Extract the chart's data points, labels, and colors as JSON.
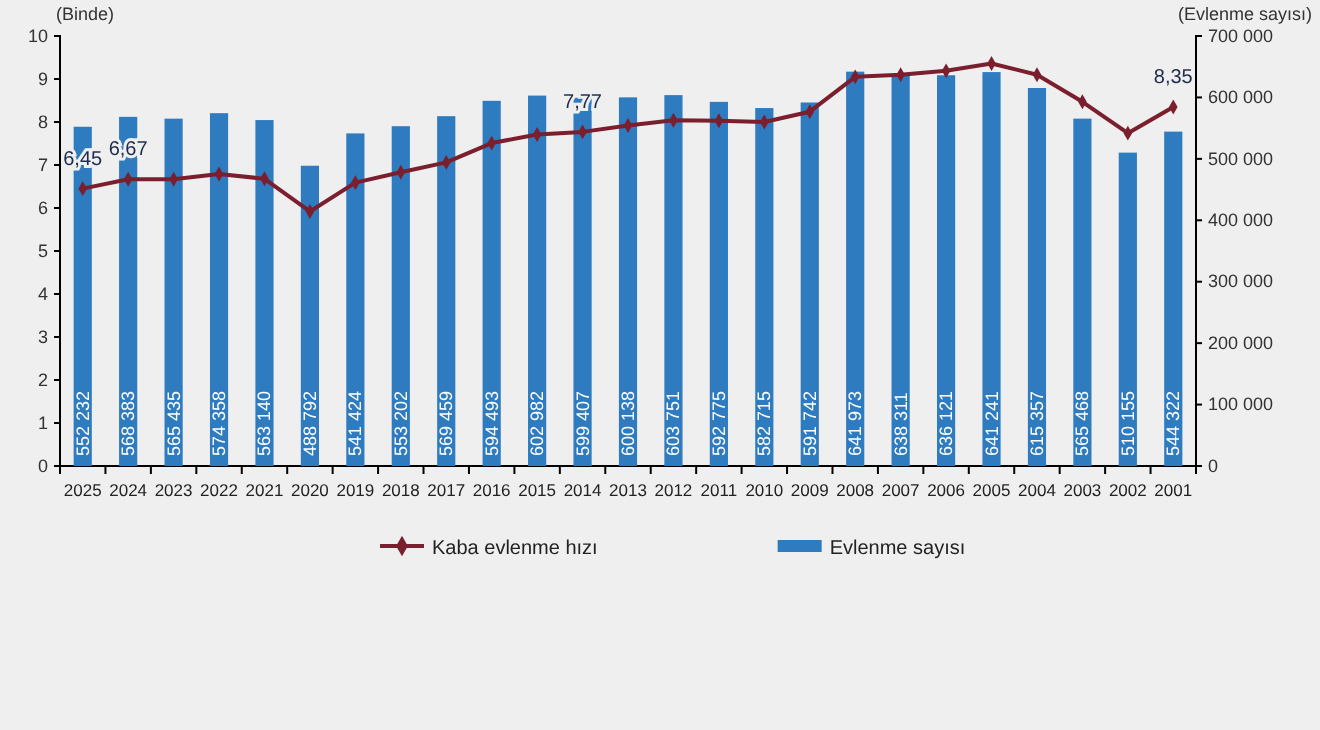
{
  "chart_data": {
    "type": "bar",
    "ylabel": "(Binde)",
    "y2label": "(Evlenme sayısı)",
    "categories": [
      "2025",
      "2024",
      "2023",
      "2022",
      "2021",
      "2020",
      "2019",
      "2018",
      "2017",
      "2016",
      "2015",
      "2014",
      "2013",
      "2012",
      "2011",
      "2010",
      "2009",
      "2008",
      "2007",
      "2006",
      "2005",
      "2004",
      "2003",
      "2002",
      "2001"
    ],
    "series": [
      {
        "name": "Evlenme sayısı",
        "axis": "y2",
        "color": "#2e7bbf",
        "values": [
          552232,
          568383,
          565435,
          574358,
          563140,
          488792,
          541424,
          553202,
          569459,
          594493,
          602982,
          599407,
          600138,
          603751,
          592775,
          582715,
          591742,
          641973,
          638311,
          636121,
          641241,
          615357,
          565468,
          510155,
          544322
        ],
        "value_labels": [
          "552 232",
          "568 383",
          "565 435",
          "574 358",
          "563 140",
          "488 792",
          "541 424",
          "553 202",
          "569 459",
          "594 493",
          "602 982",
          "599 407",
          "600 138",
          "603 751",
          "592 775",
          "582 715",
          "591 742",
          "641 973",
          "638 311",
          "636 121",
          "641 241",
          "615 357",
          "565 468",
          "510 155",
          "544 322"
        ]
      },
      {
        "name": "Kaba evlenme hızı",
        "type": "line",
        "axis": "y",
        "color": "#7b1f2e",
        "marker": "diamond",
        "values": [
          6.45,
          6.67,
          6.67,
          6.79,
          6.68,
          5.92,
          6.59,
          6.83,
          7.06,
          7.51,
          7.71,
          7.77,
          7.92,
          8.04,
          8.03,
          8.0,
          8.24,
          9.05,
          9.1,
          9.19,
          9.36,
          9.1,
          8.47,
          7.74,
          8.35
        ],
        "value_labels": [
          "6,45",
          "6,67",
          null,
          null,
          null,
          null,
          null,
          null,
          null,
          null,
          null,
          "7,77",
          null,
          null,
          null,
          null,
          null,
          null,
          null,
          null,
          null,
          null,
          null,
          null,
          "8,35"
        ]
      }
    ],
    "ylim": [
      0,
      10
    ],
    "yticks": [
      0,
      1,
      2,
      3,
      4,
      5,
      6,
      7,
      8,
      9,
      10
    ],
    "y2lim": [
      0,
      700000
    ],
    "y2ticks": [
      {
        "value": 0,
        "label": "0"
      },
      {
        "value": 100000,
        "label": "100 000"
      },
      {
        "value": 200000,
        "label": "200 000"
      },
      {
        "value": 300000,
        "label": "300 000"
      },
      {
        "value": 400000,
        "label": "400 000"
      },
      {
        "value": 500000,
        "label": "500 000"
      },
      {
        "value": 600000,
        "label": "600 000"
      },
      {
        "value": 700000,
        "label": "700 000"
      }
    ],
    "legend": "bottom",
    "grid": false
  }
}
